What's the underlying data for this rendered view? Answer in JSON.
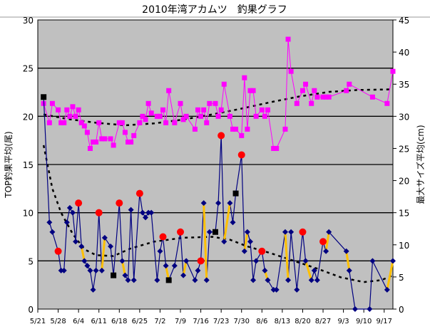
{
  "chart_data": {
    "type": "line",
    "title": "2010年湾アカムツ　釣果グラフ",
    "ylabel": "TOP釣果平均(尾)",
    "y2label": "最大サイズ平均(cm)",
    "ylim": [
      0,
      30
    ],
    "y2lim": [
      0,
      45
    ],
    "yticks": [
      "0",
      "5",
      "10",
      "15",
      "20",
      "25",
      "30"
    ],
    "y2ticks": [
      "0",
      "5",
      "10",
      "15",
      "20",
      "25",
      "30",
      "35",
      "40",
      "45"
    ],
    "x_unit": "days since 5/21",
    "xlim": [
      0,
      122
    ],
    "xticks": [
      {
        "day": 0,
        "label": "5/21"
      },
      {
        "day": 7,
        "label": "5/28"
      },
      {
        "day": 14,
        "label": "6/4"
      },
      {
        "day": 21,
        "label": "6/11"
      },
      {
        "day": 28,
        "label": "6/18"
      },
      {
        "day": 35,
        "label": "6/25"
      },
      {
        "day": 42,
        "label": "7/2"
      },
      {
        "day": 49,
        "label": "7/9"
      },
      {
        "day": 56,
        "label": "7/16"
      },
      {
        "day": 63,
        "label": "7/23"
      },
      {
        "day": 70,
        "label": "7/30"
      },
      {
        "day": 77,
        "label": "8/6"
      },
      {
        "day": 84,
        "label": "8/13"
      },
      {
        "day": 91,
        "label": "8/20"
      },
      {
        "day": 98,
        "label": "8/27"
      },
      {
        "day": 105,
        "label": "9/3"
      },
      {
        "day": 112,
        "label": "9/10"
      },
      {
        "day": 119,
        "label": "9/17"
      }
    ],
    "grid": true,
    "colors": {
      "plot_bg": "#c0c0c0",
      "top_catch": "#000080",
      "max_size": "#ff00ff",
      "highlight": "#ff0000",
      "special": "#000000",
      "change": "#ffc000",
      "trend": "#000000"
    },
    "series": [
      {
        "name": "TOP釣果",
        "axis": "left",
        "points": [
          [
            4,
            9
          ],
          [
            5,
            8
          ],
          [
            7,
            6
          ],
          [
            8,
            4
          ],
          [
            9,
            4
          ],
          [
            10,
            9
          ],
          [
            11,
            10.5
          ],
          [
            12,
            10
          ],
          [
            13,
            7
          ],
          [
            14,
            11
          ],
          [
            15,
            6.5
          ],
          [
            16,
            5
          ],
          [
            17,
            4.5
          ],
          [
            18,
            4
          ],
          [
            19,
            2
          ],
          [
            20,
            4
          ],
          [
            21,
            10
          ],
          [
            22,
            4
          ],
          [
            23,
            7.4
          ],
          [
            25,
            6.5
          ],
          [
            26,
            3.5
          ],
          [
            28,
            11
          ],
          [
            29,
            5
          ],
          [
            30,
            3.5
          ],
          [
            31,
            3
          ],
          [
            32,
            10.3
          ],
          [
            33,
            3
          ],
          [
            35,
            12
          ],
          [
            36,
            10
          ],
          [
            37,
            9.5
          ],
          [
            38,
            10
          ],
          [
            39,
            10
          ],
          [
            41,
            3
          ],
          [
            42,
            6
          ],
          [
            43,
            7.5
          ],
          [
            44,
            4.5
          ],
          [
            45,
            3
          ],
          [
            47,
            4.5
          ],
          [
            49,
            8
          ],
          [
            50,
            3.5
          ],
          [
            51,
            5
          ],
          [
            54,
            3
          ],
          [
            55,
            4
          ],
          [
            56,
            5
          ],
          [
            57,
            11
          ],
          [
            58,
            3
          ],
          [
            59,
            8
          ],
          [
            61,
            8
          ],
          [
            62,
            11
          ],
          [
            63,
            18
          ],
          [
            64,
            7
          ],
          [
            66,
            11
          ],
          [
            67,
            9
          ],
          [
            68,
            12
          ],
          [
            70,
            16
          ],
          [
            71,
            6
          ],
          [
            72,
            8
          ],
          [
            73,
            7
          ],
          [
            74,
            3
          ],
          [
            75,
            5
          ],
          [
            77,
            6
          ],
          [
            78,
            4
          ],
          [
            79,
            3
          ],
          [
            81,
            2
          ],
          [
            82,
            2
          ],
          [
            85,
            8
          ],
          [
            86,
            3
          ],
          [
            87,
            8
          ],
          [
            89,
            2
          ],
          [
            91,
            8
          ],
          [
            92,
            5
          ],
          [
            94,
            3
          ],
          [
            95,
            4
          ],
          [
            96,
            3
          ],
          [
            98,
            7
          ],
          [
            99,
            6
          ],
          [
            100,
            8
          ],
          [
            106,
            6
          ],
          [
            107,
            4
          ],
          [
            109,
            0
          ],
          [
            114,
            0
          ],
          [
            115,
            5
          ],
          [
            120,
            2
          ],
          [
            122,
            5
          ]
        ]
      },
      {
        "name": "最大サイズ",
        "axis": "right",
        "points": [
          [
            2,
            32
          ],
          [
            4,
            29
          ],
          [
            5,
            32
          ],
          [
            7,
            31
          ],
          [
            8,
            29
          ],
          [
            9,
            29
          ],
          [
            10,
            31
          ],
          [
            11,
            30
          ],
          [
            12,
            31.5
          ],
          [
            13,
            30
          ],
          [
            14,
            31
          ],
          [
            15,
            29
          ],
          [
            16,
            28.5
          ],
          [
            17,
            27.5
          ],
          [
            18,
            25
          ],
          [
            19,
            26
          ],
          [
            20,
            26
          ],
          [
            21,
            29
          ],
          [
            22,
            26.5
          ],
          [
            23,
            26.5
          ],
          [
            25,
            26.5
          ],
          [
            26,
            25.5
          ],
          [
            28,
            29
          ],
          [
            29,
            29
          ],
          [
            30,
            27.5
          ],
          [
            31,
            26
          ],
          [
            32,
            26
          ],
          [
            33,
            27
          ],
          [
            35,
            29
          ],
          [
            36,
            30
          ],
          [
            37,
            29.5
          ],
          [
            38,
            32
          ],
          [
            39,
            30.5
          ],
          [
            41,
            30
          ],
          [
            42,
            30
          ],
          [
            43,
            31
          ],
          [
            44,
            29
          ],
          [
            45,
            34
          ],
          [
            47,
            29
          ],
          [
            49,
            32
          ],
          [
            50,
            29.5
          ],
          [
            51,
            30
          ],
          [
            54,
            28
          ],
          [
            55,
            31
          ],
          [
            56,
            30
          ],
          [
            57,
            31
          ],
          [
            58,
            29
          ],
          [
            59,
            32
          ],
          [
            61,
            32
          ],
          [
            62,
            30
          ],
          [
            63,
            31
          ],
          [
            64,
            35
          ],
          [
            66,
            30
          ],
          [
            67,
            28
          ],
          [
            68,
            28
          ],
          [
            70,
            27
          ],
          [
            71,
            36
          ],
          [
            72,
            28
          ],
          [
            73,
            34
          ],
          [
            74,
            34
          ],
          [
            75,
            30
          ],
          [
            77,
            31
          ],
          [
            78,
            30
          ],
          [
            79,
            31
          ],
          [
            81,
            25
          ],
          [
            82,
            25
          ],
          [
            85,
            28
          ],
          [
            86,
            42
          ],
          [
            87,
            37
          ],
          [
            89,
            32
          ],
          [
            91,
            34
          ],
          [
            92,
            35
          ],
          [
            94,
            32
          ],
          [
            95,
            34
          ],
          [
            96,
            33
          ],
          [
            98,
            33
          ],
          [
            99,
            33
          ],
          [
            100,
            33
          ],
          [
            106,
            34
          ],
          [
            107,
            35
          ],
          [
            115,
            33
          ],
          [
            120,
            32
          ],
          [
            122,
            37
          ]
        ]
      },
      {
        "name": "highlight",
        "axis": "left",
        "marker": "circle",
        "points": [
          [
            7,
            6
          ],
          [
            14,
            11
          ],
          [
            21,
            10
          ],
          [
            28,
            11
          ],
          [
            35,
            12
          ],
          [
            43,
            7.5
          ],
          [
            49,
            8
          ],
          [
            56,
            5
          ],
          [
            63,
            18
          ],
          [
            70,
            16
          ],
          [
            77,
            6
          ],
          [
            91,
            8
          ],
          [
            98,
            7
          ]
        ]
      },
      {
        "name": "special",
        "axis": "left",
        "marker": "square",
        "points": [
          [
            2,
            22
          ],
          [
            26,
            3.5
          ],
          [
            45,
            3
          ],
          [
            61,
            8
          ],
          [
            68,
            12
          ]
        ]
      },
      {
        "name": "change",
        "axis": "left",
        "segments": [
          [
            15,
            6.5,
            16,
            5
          ],
          [
            22,
            4,
            23,
            7.4
          ],
          [
            29,
            5,
            30,
            3.5
          ],
          [
            44,
            4.5,
            45,
            3
          ],
          [
            50,
            3.5,
            51,
            5
          ],
          [
            57,
            11,
            58,
            3
          ],
          [
            64,
            7,
            66,
            11
          ],
          [
            71,
            6,
            72,
            8
          ],
          [
            78,
            4,
            79,
            3
          ],
          [
            85,
            8,
            86,
            3
          ],
          [
            92,
            5,
            94,
            3
          ],
          [
            99,
            6,
            100,
            8
          ],
          [
            106,
            6,
            107,
            4
          ],
          [
            120,
            2,
            122,
            5
          ]
        ]
      },
      {
        "name": "TOP釣果 trend",
        "axis": "left",
        "dotted": true,
        "points": [
          [
            2,
            17
          ],
          [
            5,
            12.5
          ],
          [
            8,
            10
          ],
          [
            12,
            7.8
          ],
          [
            16,
            6.2
          ],
          [
            20,
            5.6
          ],
          [
            26,
            5.5
          ],
          [
            32,
            6.3
          ],
          [
            40,
            7
          ],
          [
            50,
            7.4
          ],
          [
            60,
            7.5
          ],
          [
            66,
            7.2
          ],
          [
            72,
            6.5
          ],
          [
            80,
            5.8
          ],
          [
            88,
            5
          ],
          [
            96,
            4.2
          ],
          [
            104,
            3.3
          ],
          [
            112,
            2.8
          ],
          [
            118,
            3
          ],
          [
            122,
            3.5
          ]
        ]
      },
      {
        "name": "最大サイズ trend",
        "axis": "right",
        "dotted": true,
        "points": [
          [
            2,
            30.3
          ],
          [
            10,
            29.6
          ],
          [
            20,
            29
          ],
          [
            30,
            28.6
          ],
          [
            40,
            28.9
          ],
          [
            50,
            29.5
          ],
          [
            60,
            30.3
          ],
          [
            70,
            31.2
          ],
          [
            80,
            32.2
          ],
          [
            90,
            33.1
          ],
          [
            100,
            33.8
          ],
          [
            110,
            34.1
          ],
          [
            122,
            34.2
          ]
        ]
      }
    ]
  }
}
